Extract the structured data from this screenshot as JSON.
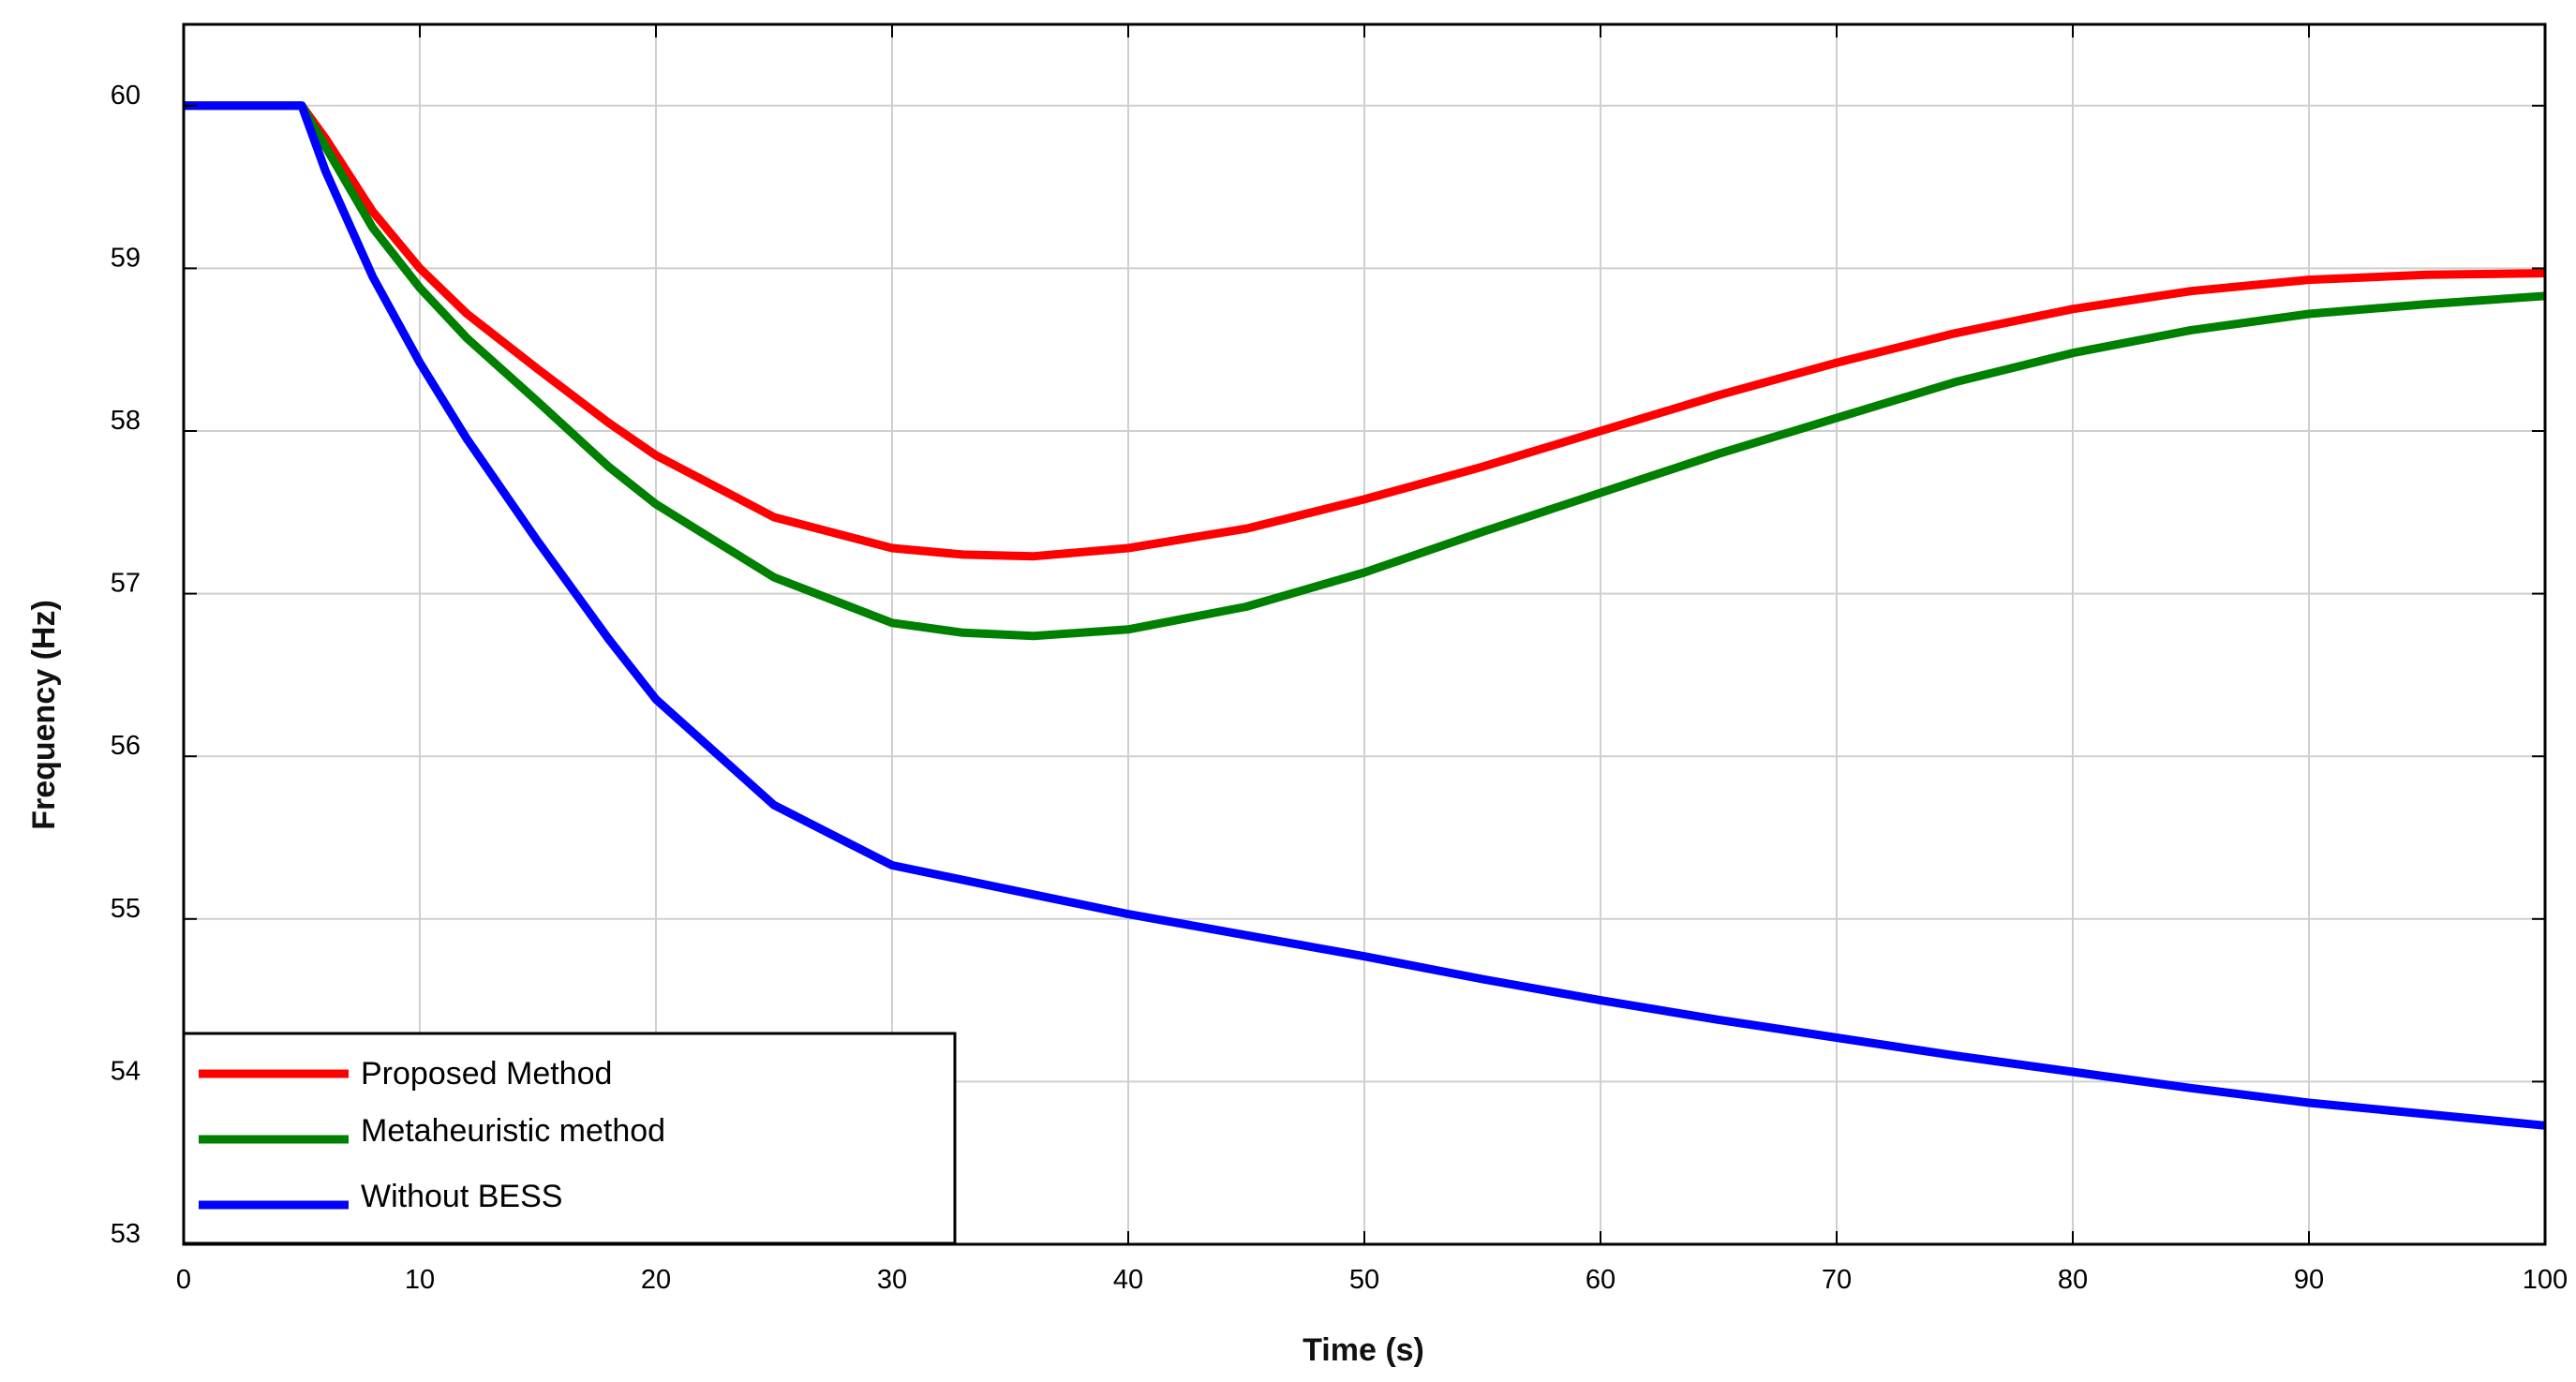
{
  "chart_data": {
    "type": "line",
    "xlabel": "Time (s)",
    "ylabel": "Frequency (Hz)",
    "xlim": [
      0,
      100
    ],
    "ylim": [
      53,
      60.5
    ],
    "xticks": [
      0,
      10,
      20,
      30,
      40,
      50,
      60,
      70,
      80,
      90,
      100
    ],
    "yticks": [
      53,
      54,
      55,
      56,
      57,
      58,
      59,
      60
    ],
    "grid": true,
    "legend_position": "bottom-left",
    "series": [
      {
        "name": "Proposed Method",
        "color": "#ff0000",
        "points": [
          [
            0,
            60
          ],
          [
            5,
            60
          ],
          [
            6,
            59.8
          ],
          [
            8,
            59.35
          ],
          [
            10,
            59.0
          ],
          [
            12,
            58.72
          ],
          [
            15,
            58.38
          ],
          [
            18,
            58.05
          ],
          [
            20,
            57.85
          ],
          [
            25,
            57.47
          ],
          [
            30,
            57.28
          ],
          [
            33,
            57.24
          ],
          [
            36,
            57.23
          ],
          [
            40,
            57.28
          ],
          [
            45,
            57.4
          ],
          [
            50,
            57.58
          ],
          [
            55,
            57.78
          ],
          [
            60,
            58.0
          ],
          [
            65,
            58.22
          ],
          [
            70,
            58.42
          ],
          [
            75,
            58.6
          ],
          [
            80,
            58.75
          ],
          [
            85,
            58.86
          ],
          [
            90,
            58.93
          ],
          [
            95,
            58.96
          ],
          [
            100,
            58.97
          ]
        ]
      },
      {
        "name": "Metaheuristic method",
        "color": "#008000",
        "points": [
          [
            0,
            60
          ],
          [
            5,
            60
          ],
          [
            6,
            59.75
          ],
          [
            8,
            59.25
          ],
          [
            10,
            58.88
          ],
          [
            12,
            58.57
          ],
          [
            15,
            58.18
          ],
          [
            18,
            57.78
          ],
          [
            20,
            57.55
          ],
          [
            25,
            57.1
          ],
          [
            30,
            56.82
          ],
          [
            33,
            56.76
          ],
          [
            36,
            56.74
          ],
          [
            40,
            56.78
          ],
          [
            45,
            56.92
          ],
          [
            50,
            57.13
          ],
          [
            55,
            57.38
          ],
          [
            60,
            57.62
          ],
          [
            65,
            57.86
          ],
          [
            70,
            58.08
          ],
          [
            75,
            58.3
          ],
          [
            80,
            58.48
          ],
          [
            85,
            58.62
          ],
          [
            90,
            58.72
          ],
          [
            95,
            58.78
          ],
          [
            100,
            58.83
          ]
        ]
      },
      {
        "name": "Without BESS",
        "color": "#0000ff",
        "points": [
          [
            0,
            60
          ],
          [
            5,
            60
          ],
          [
            6,
            59.6
          ],
          [
            8,
            58.95
          ],
          [
            10,
            58.42
          ],
          [
            12,
            57.95
          ],
          [
            15,
            57.32
          ],
          [
            18,
            56.72
          ],
          [
            20,
            56.35
          ],
          [
            25,
            55.7
          ],
          [
            30,
            55.33
          ],
          [
            33,
            55.24
          ],
          [
            36,
            55.15
          ],
          [
            40,
            55.03
          ],
          [
            45,
            54.9
          ],
          [
            50,
            54.77
          ],
          [
            55,
            54.63
          ],
          [
            60,
            54.5
          ],
          [
            65,
            54.38
          ],
          [
            70,
            54.27
          ],
          [
            75,
            54.16
          ],
          [
            80,
            54.06
          ],
          [
            85,
            53.96
          ],
          [
            90,
            53.87
          ],
          [
            95,
            53.8
          ],
          [
            100,
            53.73
          ]
        ]
      }
    ]
  }
}
